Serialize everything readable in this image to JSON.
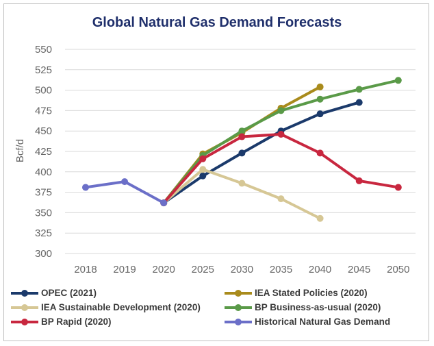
{
  "chart_data": {
    "type": "line",
    "title": "Global Natural Gas Demand Forecasts",
    "xlabel": "",
    "ylabel": "Bcf/d",
    "categories": [
      "2018",
      "2019",
      "2020",
      "2025",
      "2030",
      "2035",
      "2040",
      "2045",
      "2050"
    ],
    "yticks": [
      300,
      325,
      350,
      375,
      400,
      425,
      450,
      475,
      500,
      525,
      550
    ],
    "ylim": [
      300,
      550
    ],
    "grid": true,
    "legend_position": "bottom",
    "series": [
      {
        "name": "OPEC (2021)",
        "color": "#1b3a6b",
        "values": [
          null,
          null,
          362,
          395,
          423,
          450,
          471,
          485,
          null
        ]
      },
      {
        "name": "IEA Stated Policies (2020)",
        "color": "#a98b1c",
        "values": [
          null,
          null,
          362,
          422,
          448,
          478,
          504,
          null,
          null
        ]
      },
      {
        "name": "IEA Sustainable Development (2020)",
        "color": "#d6c795",
        "values": [
          null,
          null,
          362,
          403,
          386,
          367,
          343,
          null,
          null
        ]
      },
      {
        "name": "BP Business-as-usual (2020)",
        "color": "#5a9a48",
        "values": [
          null,
          null,
          362,
          420,
          450,
          475,
          489,
          501,
          512
        ]
      },
      {
        "name": "BP Rapid (2020)",
        "color": "#c8273f",
        "values": [
          null,
          null,
          362,
          416,
          443,
          446,
          423,
          389,
          381
        ]
      },
      {
        "name": "Historical Natural Gas Demand",
        "color": "#6b6fc8",
        "values": [
          381,
          388,
          362,
          null,
          null,
          null,
          null,
          null,
          null
        ]
      }
    ]
  }
}
